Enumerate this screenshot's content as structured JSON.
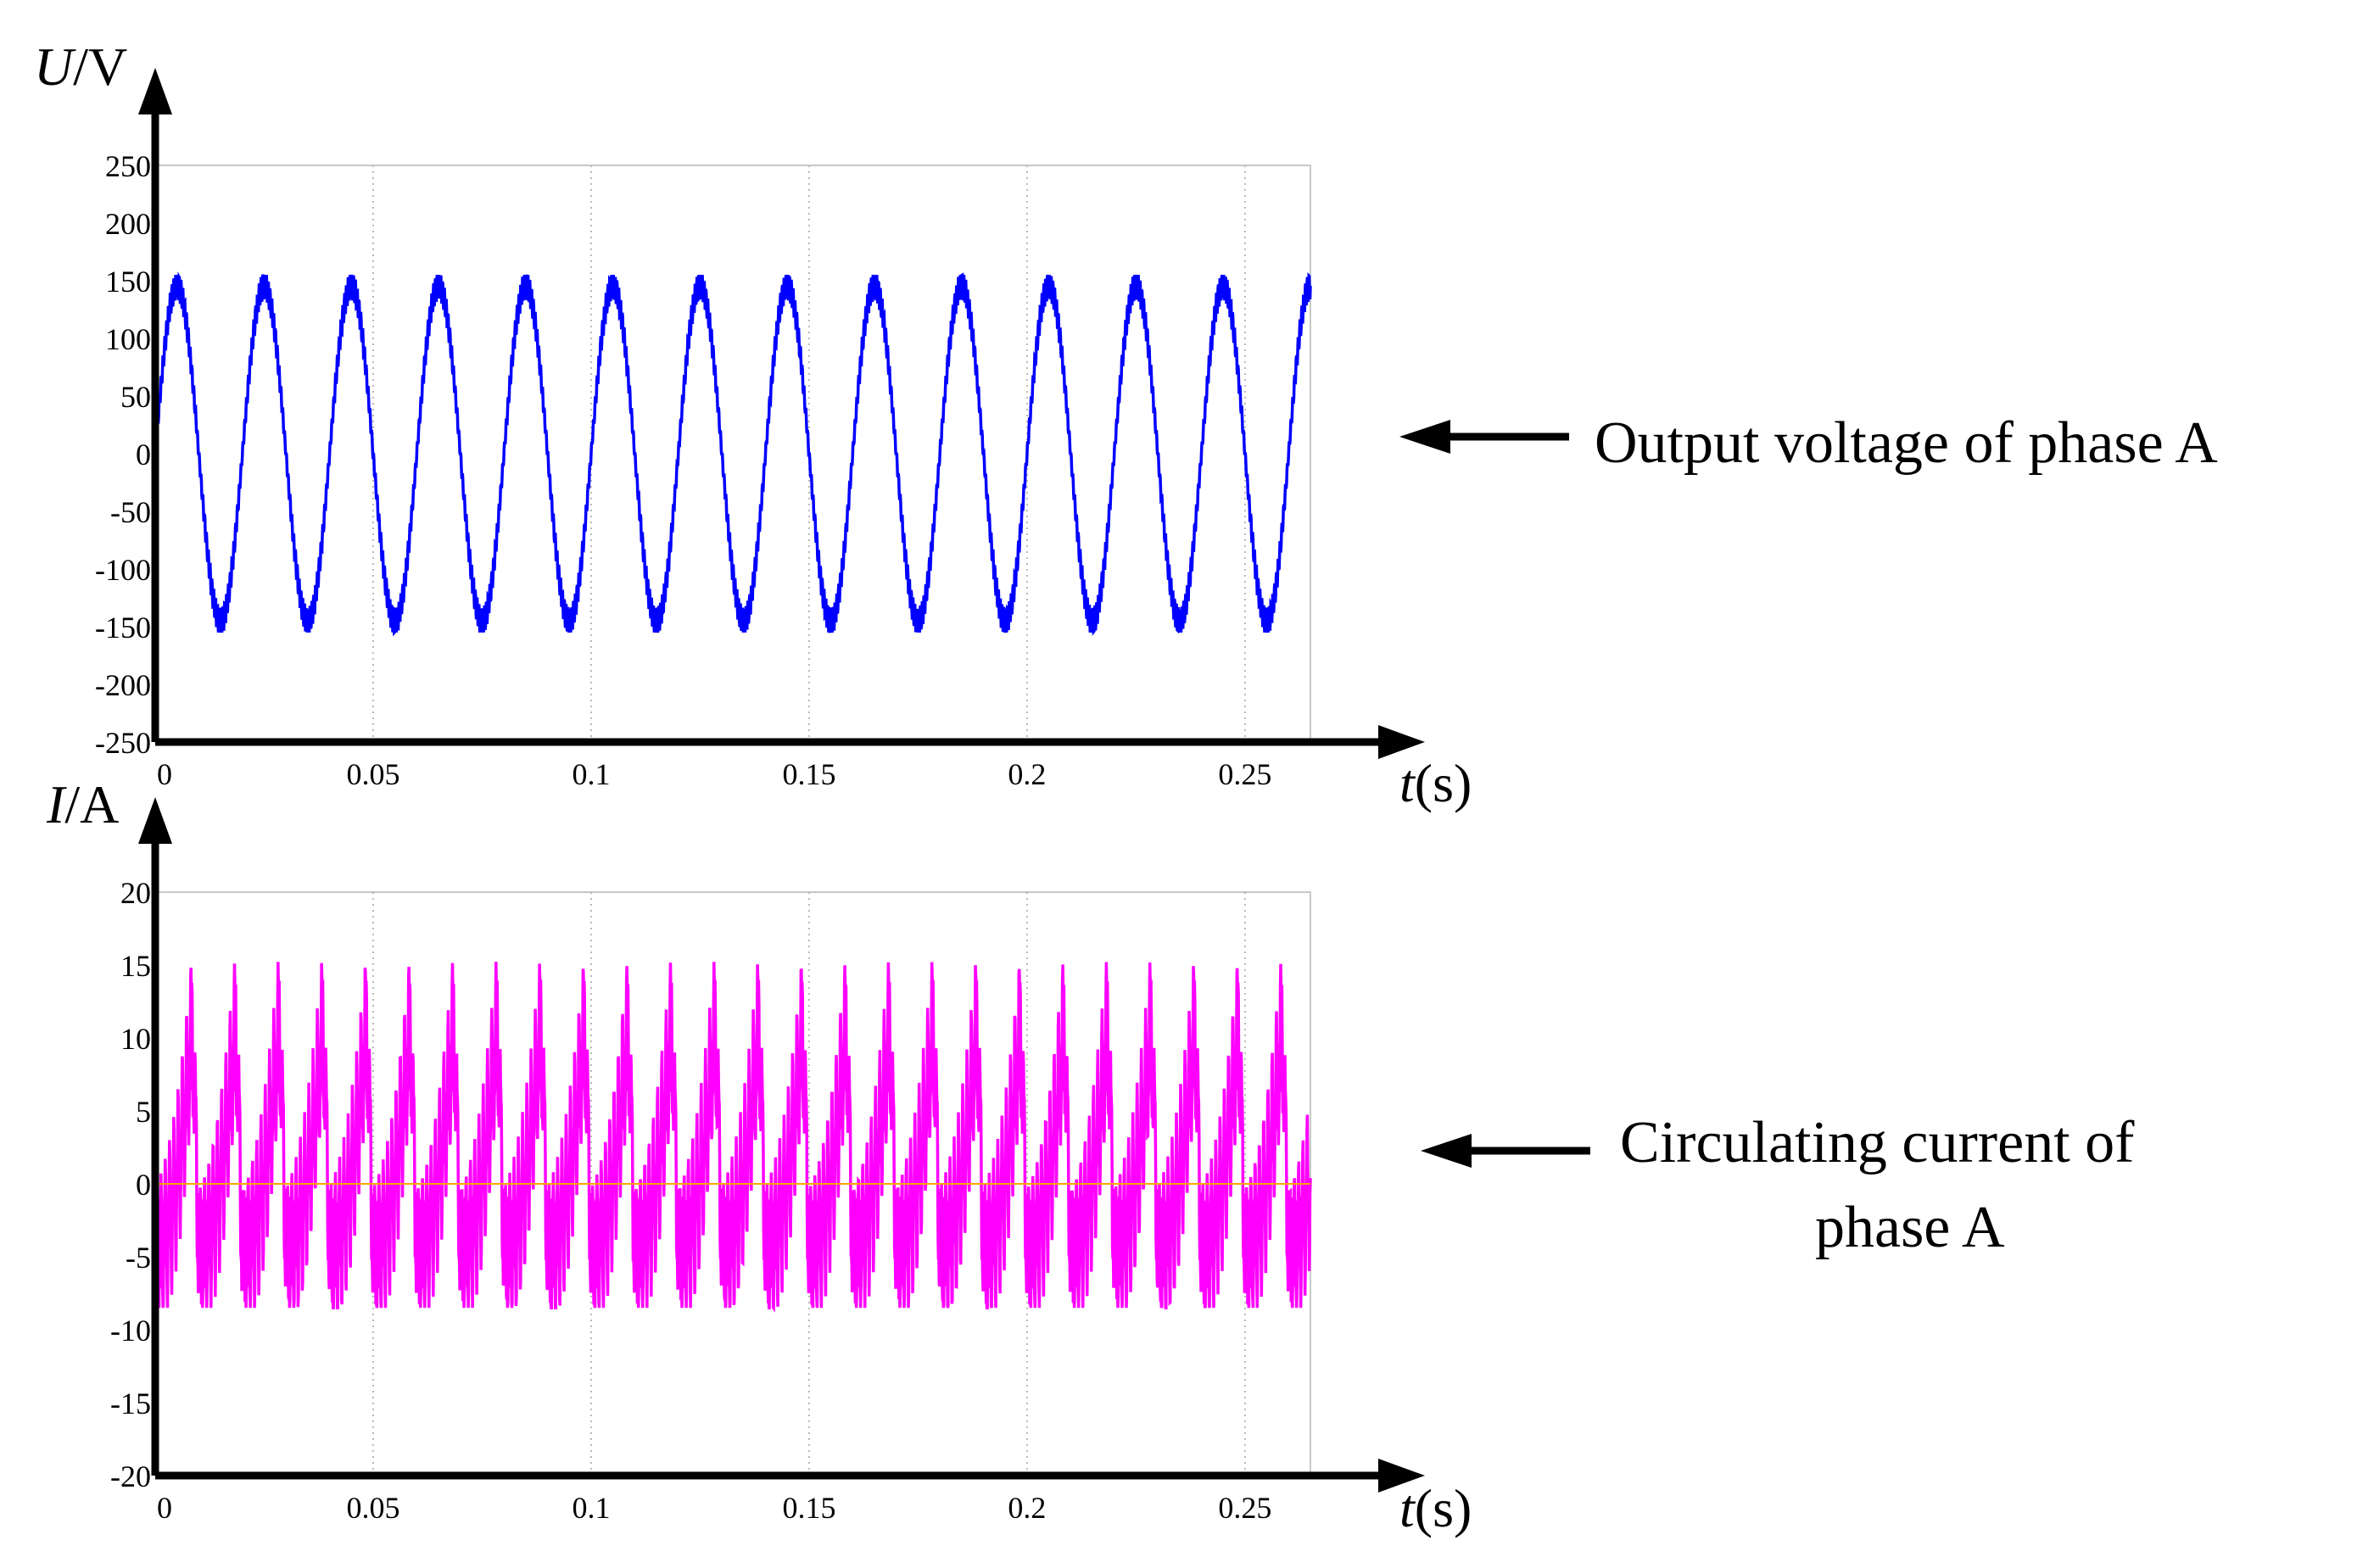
{
  "chart_data": [
    {
      "type": "line",
      "series": [
        {
          "name": "Output voltage of phase A",
          "color": "#0000ff",
          "shape": "sine with ripple",
          "frequency_hz": 50,
          "amplitude": 150,
          "ripple_amplitude": 12
        }
      ],
      "xlabel_var": "t",
      "xlabel_unit": "(s)",
      "ylabel_var": "U",
      "ylabel_unit": "/V",
      "xlim": [
        0,
        0.265
      ],
      "ylim": [
        -250,
        250
      ],
      "xticks": [
        "0",
        "0.05",
        "0.1",
        "0.15",
        "0.2",
        "0.25"
      ],
      "yticks": [
        "250",
        "200",
        "150",
        "100",
        "50",
        "0",
        "-50",
        "-100",
        "-150",
        "-200",
        "-250"
      ],
      "grid": "vertical dotted",
      "annotation": "Output voltage of phase A"
    },
    {
      "type": "line",
      "series": [
        {
          "name": "Circulating current of phase A",
          "color": "#ff00ff",
          "shape": "sawtooth spikes with ripple",
          "frequency_hz": 100,
          "peak": 15,
          "trough": -7
        },
        {
          "name": "reference",
          "color": "#ffa500",
          "values_constant": 0
        }
      ],
      "xlabel_var": "t",
      "xlabel_unit": "(s)",
      "ylabel_var": "I",
      "ylabel_unit": "/A",
      "xlim": [
        0,
        0.265
      ],
      "ylim": [
        -20,
        20
      ],
      "xticks": [
        "0",
        "0.05",
        "0.1",
        "0.15",
        "0.2",
        "0.25"
      ],
      "yticks": [
        "20",
        "15",
        "10",
        "5",
        "0",
        "-5",
        "-10",
        "-15",
        "-20"
      ],
      "grid": "vertical dotted",
      "annotation_line1": "Circulating current of",
      "annotation_line2": "phase A"
    }
  ]
}
